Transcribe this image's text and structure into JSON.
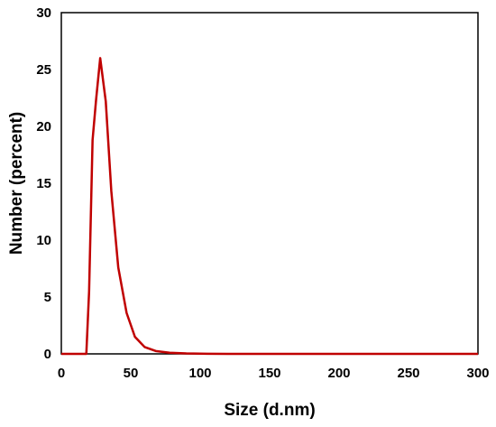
{
  "chart_data": {
    "type": "line",
    "title": "",
    "xlabel": "Size (d.nm)",
    "ylabel": "Number (percent)",
    "xlim": [
      0,
      300
    ],
    "ylim": [
      0,
      30
    ],
    "x_ticks": [
      0,
      50,
      100,
      150,
      200,
      250,
      300
    ],
    "y_ticks": [
      0,
      5,
      10,
      15,
      20,
      25,
      30
    ],
    "grid": false,
    "legend": "none",
    "series": [
      {
        "color": "#c00000",
        "x": [
          0,
          18,
          20,
          22.5,
          25,
          28,
          32,
          36,
          41,
          47,
          53,
          60,
          68,
          78,
          90,
          105,
          120,
          150,
          200,
          250,
          300
        ],
        "y": [
          0,
          0,
          5.5,
          18.8,
          22.3,
          26.0,
          22.2,
          14.3,
          7.6,
          3.6,
          1.5,
          0.6,
          0.25,
          0.1,
          0.04,
          0.01,
          0,
          0,
          0,
          0,
          0
        ]
      }
    ]
  }
}
